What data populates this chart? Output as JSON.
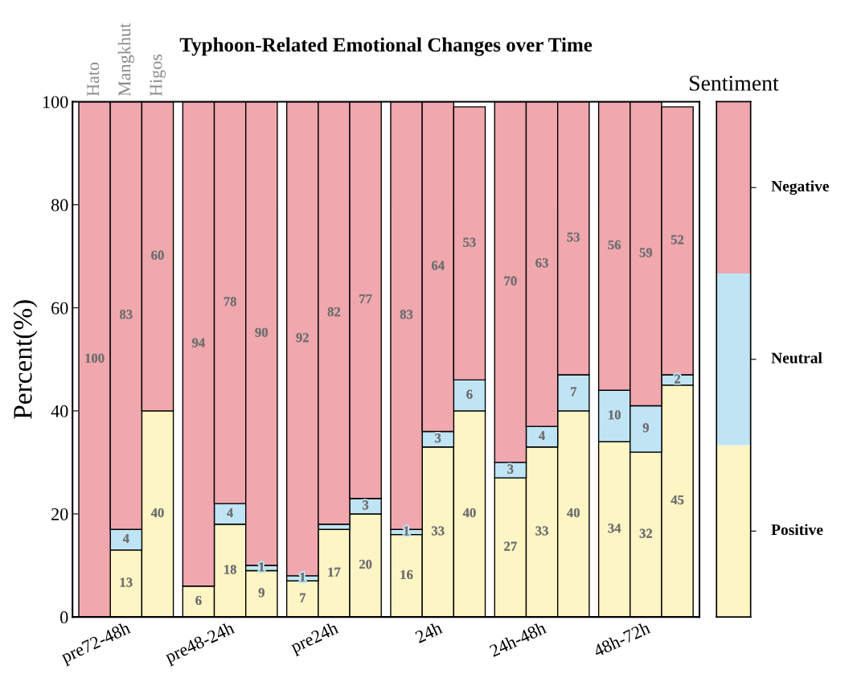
{
  "chart_data": {
    "type": "bar",
    "stacked": true,
    "title": "Typhoon-Related Emotional Changes over Time",
    "ylabel": "Percent(%)",
    "legend_title": "Sentiment",
    "legend": "right",
    "grid": false,
    "categories": [
      null,
      "pre72-48h",
      null,
      null,
      "pre48-24h",
      null,
      null,
      "pre24h",
      null,
      null,
      "24h",
      null,
      null,
      "24h-48h",
      null,
      null,
      "48h-72h",
      null
    ],
    "annotations": [
      "Hato",
      "Mangkhut",
      "Higos"
    ],
    "ylim": [
      0,
      100
    ],
    "yticks": [
      0,
      20,
      40,
      60,
      80,
      100
    ],
    "series": [
      {
        "name": "Positive",
        "color": "#fdf5c4",
        "values": [
          0,
          13,
          40,
          6,
          18,
          9,
          7,
          17,
          20,
          16,
          33,
          40,
          27,
          33,
          40,
          34,
          32,
          45
        ],
        "value_labels": [
          null,
          "13",
          "40",
          "6",
          "18",
          "9",
          "7",
          "17",
          "20",
          "16",
          "33",
          "40",
          "27",
          "33",
          "40",
          "34",
          "32",
          "45"
        ]
      },
      {
        "name": "Neutral",
        "color": "#bfe5f5",
        "values": [
          0,
          4,
          0,
          0,
          4,
          1,
          1,
          1,
          3,
          1,
          3,
          6,
          3,
          4,
          7,
          10,
          9,
          2
        ],
        "value_labels": [
          null,
          "4",
          null,
          null,
          "4",
          "1",
          "1",
          null,
          "3",
          "1",
          "3",
          "6",
          "3",
          "4",
          "7",
          "10",
          "9",
          "2"
        ]
      },
      {
        "name": "Negative",
        "color": "#f0a7ae",
        "values": [
          100,
          83,
          60,
          94,
          78,
          90,
          92,
          82,
          77,
          83,
          64,
          53,
          70,
          63,
          53,
          56,
          59,
          52
        ],
        "value_labels": [
          "100",
          "83",
          "60",
          "94",
          "78",
          "90",
          "92",
          "82",
          "77",
          "83",
          "64",
          "53",
          "70",
          "63",
          "53",
          "56",
          "59",
          "52"
        ]
      }
    ]
  }
}
